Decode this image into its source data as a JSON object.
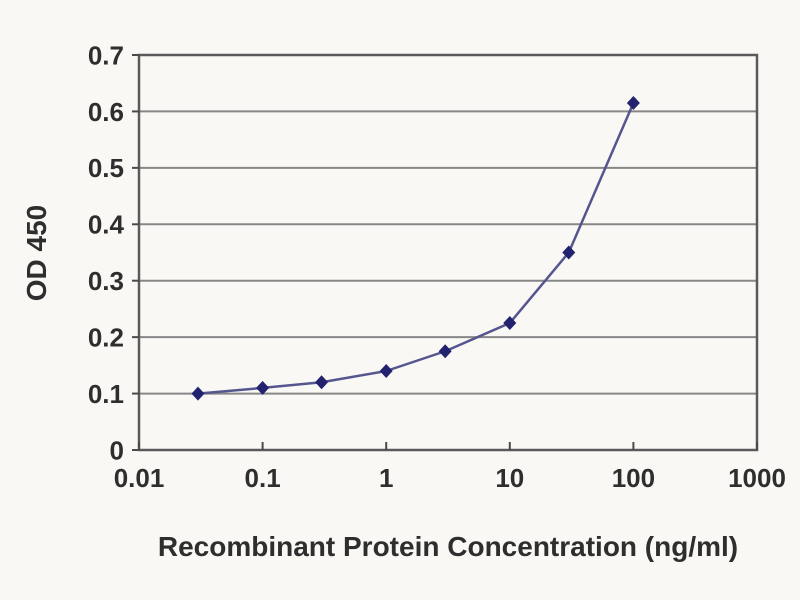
{
  "chart_data": {
    "type": "line",
    "title": "",
    "xlabel": "Recombinant Protein Concentration (ng/ml)",
    "ylabel": "OD 450",
    "x_scale": "log10",
    "xlim": [
      0.01,
      1000
    ],
    "ylim": [
      0,
      0.7
    ],
    "x_ticks": [
      0.01,
      0.1,
      1,
      10,
      100,
      1000
    ],
    "x_tick_labels": [
      "0.01",
      "0.1",
      "1",
      "10",
      "100",
      "1000"
    ],
    "y_ticks": [
      0,
      0.1,
      0.2,
      0.3,
      0.4,
      0.5,
      0.6,
      0.7
    ],
    "y_tick_labels": [
      "0",
      "0.1",
      "0.2",
      "0.3",
      "0.4",
      "0.5",
      "0.6",
      "0.7"
    ],
    "grid": "horizontal",
    "legend": "none",
    "series": [
      {
        "name": "OD 450",
        "marker": "diamond",
        "x": [
          0.03,
          0.1,
          0.3,
          1,
          3,
          10,
          30,
          100
        ],
        "y": [
          0.1,
          0.11,
          0.12,
          0.14,
          0.175,
          0.225,
          0.35,
          0.615
        ]
      }
    ],
    "colors": {
      "line": "#56568f",
      "marker": "#22226e",
      "gridline": "#878787",
      "frame": "#5a5a5a",
      "tick": "#4a4a4a",
      "text": "#2e2e2e",
      "background": "#f9f8f5"
    }
  }
}
